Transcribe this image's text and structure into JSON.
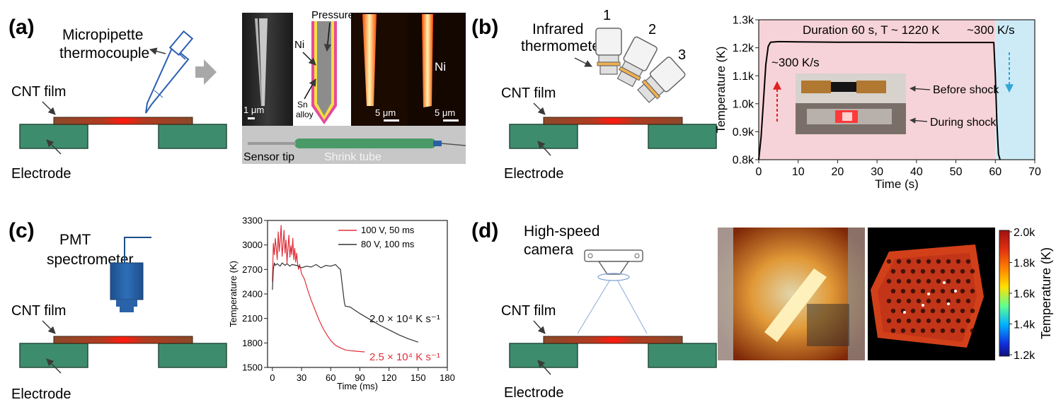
{
  "panels": {
    "a": {
      "label": "(a)",
      "micropipette": [
        "Micropipette",
        "thermocouple"
      ],
      "film": "CNT film",
      "electrode": "Electrode",
      "micro": {
        "scale1": "1 μm",
        "pressure": "Pressure",
        "ni_left": "Ni",
        "sn": [
          "Sn",
          "alloy"
        ],
        "scale2": "5 μm",
        "ni_right": "Ni",
        "scale3": "5 μm",
        "sensor_tip": "Sensor tip",
        "shrink_tube": "Shrink tube"
      }
    },
    "b": {
      "label": "(b)",
      "thermometer": [
        "Infrared",
        "thermometer"
      ],
      "numbers": [
        "1",
        "2",
        "3"
      ],
      "film": "CNT film",
      "electrode": "Electrode"
    },
    "c": {
      "label": "(c)",
      "detector": [
        "PMT",
        "spectrometer"
      ],
      "film": "CNT film",
      "electrode": "Electrode"
    },
    "d": {
      "label": "(d)",
      "camera": [
        "High-speed",
        "camera"
      ],
      "film": "CNT film",
      "electrode": "Electrode",
      "colorbar": {
        "label": "Temperature (K)",
        "ticks": [
          "2.0k",
          "1.8k",
          "1.6k",
          "1.4k",
          "1.2k"
        ]
      }
    }
  },
  "chart_data": [
    {
      "type": "line",
      "panel": "b",
      "xlabel": "Time (s)",
      "ylabel": "Temperature (K)",
      "xlim": [
        0,
        70
      ],
      "ylim": [
        800,
        1300
      ],
      "xticks": [
        "0",
        "10",
        "20",
        "30",
        "40",
        "50",
        "60",
        "70"
      ],
      "yticks": [
        "0.8k",
        "0.9k",
        "1.0k",
        "1.1k",
        "1.2k",
        "1.3k"
      ],
      "series": [
        {
          "color": "#000000",
          "x": [
            0,
            0.6,
            1.2,
            1.8,
            2.4,
            3,
            5,
            10,
            20,
            30,
            40,
            50,
            59.6,
            60.0,
            60.4,
            60.8,
            61.2
          ],
          "y": [
            800,
            880,
            1010,
            1140,
            1205,
            1220,
            1222,
            1221,
            1220,
            1220,
            1219,
            1219,
            1219,
            1100,
            930,
            820,
            800
          ]
        }
      ],
      "annotations": {
        "duration": "Duration 60 s, T ~ 1220 K",
        "cooling": "~300 K/s",
        "heating": "~300 K/s",
        "before": "Before shock",
        "during": "During shock"
      },
      "heating_region": [
        0,
        60
      ],
      "cooling_region": [
        60,
        70
      ],
      "heating_color": "#f6d3d8",
      "cooling_color": "#cdebf6"
    },
    {
      "type": "line",
      "panel": "c",
      "xlabel": "Time (ms)",
      "ylabel": "Temperature (K)",
      "xlim": [
        -5,
        180
      ],
      "ylim": [
        1500,
        3300
      ],
      "xticks": [
        "0",
        "30",
        "60",
        "90",
        "120",
        "150",
        "180"
      ],
      "yticks": [
        "1500",
        "1800",
        "2100",
        "2400",
        "2700",
        "3000",
        "3300"
      ],
      "series": [
        {
          "name": "100 V, 50 ms",
          "color": "#e0303a",
          "x": [
            0,
            1,
            2,
            3,
            4,
            5,
            6,
            7,
            8,
            9,
            10,
            11,
            12,
            13,
            14,
            15,
            16,
            17,
            18,
            19,
            20,
            21,
            22,
            23,
            24,
            25,
            26,
            27,
            28,
            30,
            33,
            36,
            40,
            44,
            48,
            52,
            56,
            60,
            65,
            70,
            75,
            80,
            85,
            90,
            95
          ],
          "y": [
            2550,
            3020,
            2880,
            3080,
            2950,
            2820,
            3160,
            2920,
            3050,
            3240,
            2860,
            3010,
            3180,
            2900,
            3060,
            2780,
            2960,
            3120,
            2850,
            2990,
            2880,
            3080,
            2820,
            2960,
            2790,
            2900,
            2760,
            2700,
            2760,
            2650,
            2580,
            2460,
            2320,
            2200,
            2080,
            1980,
            1900,
            1830,
            1770,
            1740,
            1715,
            1705,
            1700,
            1695,
            1690
          ]
        },
        {
          "name": "80 V, 100 ms",
          "color": "#333333",
          "x": [
            0,
            1,
            2,
            3,
            5,
            8,
            10,
            13,
            15,
            18,
            20,
            25,
            30,
            35,
            40,
            45,
            50,
            55,
            60,
            65,
            68,
            70,
            72,
            74,
            75,
            80,
            90,
            100,
            110,
            120,
            130,
            140,
            150
          ],
          "y": [
            2450,
            2700,
            2780,
            2750,
            2770,
            2740,
            2780,
            2750,
            2770,
            2740,
            2760,
            2750,
            2720,
            2740,
            2730,
            2760,
            2720,
            2750,
            2740,
            2760,
            2720,
            2700,
            2500,
            2300,
            2250,
            2240,
            2160,
            2090,
            2020,
            1960,
            1900,
            1850,
            1810
          ]
        }
      ],
      "annotations": {
        "rate_black": "2.0 × 10⁴ K s⁻¹",
        "rate_red": "2.5 × 10⁴ K s⁻¹"
      }
    }
  ]
}
